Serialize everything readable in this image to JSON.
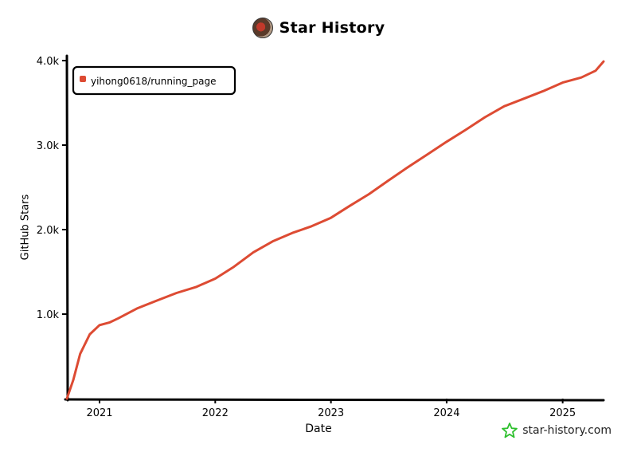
{
  "chart_data": {
    "type": "line",
    "title": "Star History",
    "xlabel": "Date",
    "ylabel": "GitHub Stars",
    "x_ticks": [
      "2021",
      "2022",
      "2023",
      "2024",
      "2025"
    ],
    "y_ticks": [
      "1.0k",
      "2.0k",
      "3.0k",
      "4.0k"
    ],
    "y_tick_values": [
      1000,
      2000,
      3000,
      4000
    ],
    "ylim": [
      0,
      4000
    ],
    "xlim": [
      "2020-09-20",
      "2025-05-10"
    ],
    "grid": false,
    "legend_position": "top-left",
    "series": [
      {
        "name": "yihong0618/running_page",
        "color": "#dd4b33",
        "x": [
          "2020-09-20",
          "2020-10-10",
          "2020-11-01",
          "2020-12-01",
          "2021-01-01",
          "2021-02-01",
          "2021-03-01",
          "2021-05-01",
          "2021-07-01",
          "2021-09-01",
          "2021-11-01",
          "2022-01-01",
          "2022-03-01",
          "2022-05-01",
          "2022-07-01",
          "2022-09-01",
          "2022-11-01",
          "2023-01-01",
          "2023-03-01",
          "2023-05-01",
          "2023-07-01",
          "2023-09-01",
          "2023-11-01",
          "2024-01-01",
          "2024-03-01",
          "2024-05-01",
          "2024-07-01",
          "2024-09-01",
          "2024-11-01",
          "2025-01-01",
          "2025-03-01",
          "2025-04-15",
          "2025-05-10"
        ],
        "values": [
          0,
          220,
          530,
          760,
          870,
          900,
          950,
          1070,
          1160,
          1250,
          1320,
          1420,
          1560,
          1730,
          1860,
          1960,
          2040,
          2140,
          2280,
          2420,
          2580,
          2740,
          2890,
          3040,
          3180,
          3330,
          3460,
          3550,
          3640,
          3740,
          3800,
          3880,
          3990
        ]
      }
    ]
  },
  "header": {
    "avatar_icon": "github-avatar",
    "title": "Star History"
  },
  "axes": {
    "xlabel": "Date",
    "ylabel": "GitHub Stars"
  },
  "legend": {
    "label": "yihong0618/running_page"
  },
  "watermark": {
    "icon": "star-outline-icon",
    "color": "#2ec02e",
    "text": "star-history.com"
  }
}
